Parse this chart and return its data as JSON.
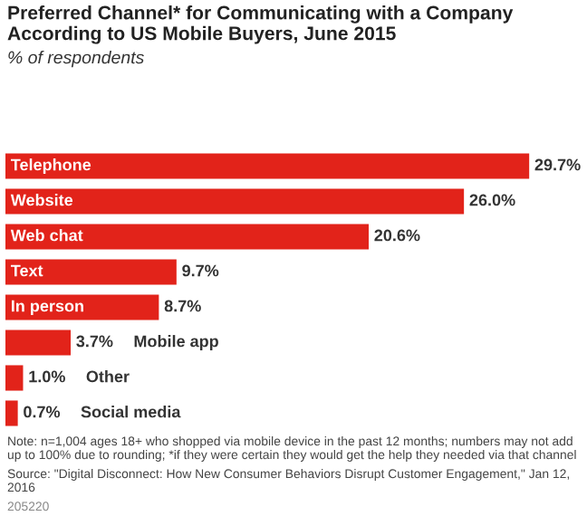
{
  "chart_data": {
    "type": "bar",
    "orientation": "horizontal",
    "title": "Preferred Channel* for Communicating with a Company According to US Mobile Buyers, June 2015",
    "subtitle": "% of respondents",
    "categories": [
      "Telephone",
      "Website",
      "Web chat",
      "Text",
      "In person",
      "Mobile app",
      "Other",
      "Social media"
    ],
    "values": [
      29.7,
      26.0,
      20.6,
      9.7,
      8.7,
      3.7,
      1.0,
      0.7
    ],
    "value_labels": [
      "29.7%",
      "26.0%",
      "20.6%",
      "9.7%",
      "8.7%",
      "3.7%",
      "1.0%",
      "0.7%"
    ],
    "color": "#e2231a",
    "annotations": [
      "Note: n=1,004 ages 18+ who shopped via mobile device in the past 12 months; numbers may not add up to 100% due to rounding; *if they were certain they would get the help they needed via that channel",
      "Source: \"Digital Disconnect: How New Consumer Behaviors Disrupt Customer Engagement,\" Jan 12, 2016",
      "205220"
    ]
  }
}
